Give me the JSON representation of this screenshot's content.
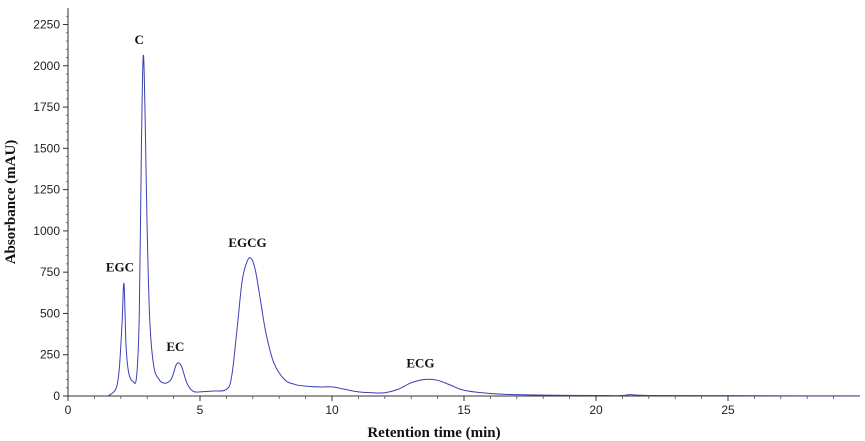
{
  "chart_data": {
    "type": "line",
    "title": "",
    "xlabel": "Retention time (min)",
    "ylabel": "Absorbance (mAU)",
    "xlim": [
      0,
      30
    ],
    "ylim": [
      0,
      2350
    ],
    "x_ticks": [
      0,
      5,
      10,
      15,
      20,
      25
    ],
    "y_ticks": [
      0,
      250,
      500,
      750,
      1000,
      1250,
      1500,
      1750,
      2000,
      2250
    ],
    "grid": false,
    "legend": "none",
    "line_color": "#3b3fb5",
    "series": [
      {
        "x": [
          1.5,
          1.7,
          1.85,
          1.95,
          2.05,
          2.12,
          2.2,
          2.3,
          2.45,
          2.6,
          2.7,
          2.78,
          2.85,
          2.92,
          3.0,
          3.1,
          3.25,
          3.45,
          3.6,
          3.75,
          3.9,
          4.0,
          4.1,
          4.2,
          4.3,
          4.38,
          4.5,
          4.65,
          4.8,
          5.0,
          5.5,
          6.0,
          6.2,
          6.4,
          6.6,
          6.8,
          6.95,
          7.1,
          7.3,
          7.5,
          7.8,
          8.2,
          8.6,
          9.0,
          9.5,
          10.0,
          10.5,
          11.0,
          11.5,
          12.0,
          12.5,
          13.0,
          13.5,
          14.0,
          14.5,
          15.0,
          16.0,
          17.0,
          18.0,
          20.0,
          21.0,
          21.3,
          22.0,
          25.0,
          28.0,
          30.0
        ],
        "y": [
          0,
          20,
          60,
          180,
          450,
          680,
          300,
          140,
          90,
          120,
          500,
          1500,
          2060,
          1700,
          1000,
          450,
          180,
          100,
          80,
          80,
          100,
          140,
          190,
          200,
          180,
          140,
          80,
          40,
          25,
          25,
          30,
          40,
          120,
          400,
          700,
          820,
          830,
          760,
          570,
          380,
          200,
          100,
          70,
          60,
          55,
          55,
          40,
          25,
          20,
          20,
          40,
          80,
          100,
          95,
          65,
          35,
          15,
          8,
          5,
          3,
          3,
          8,
          3,
          2,
          1,
          1
        ]
      }
    ],
    "annotations": [
      {
        "text": "EGC",
        "x": 2.12,
        "y": 680
      },
      {
        "text": "C",
        "x": 2.85,
        "y": 2060
      },
      {
        "text": "EC",
        "x": 4.22,
        "y": 200
      },
      {
        "text": "EGCG",
        "x": 6.95,
        "y": 830
      },
      {
        "text": "ECG",
        "x": 13.5,
        "y": 100
      }
    ]
  }
}
